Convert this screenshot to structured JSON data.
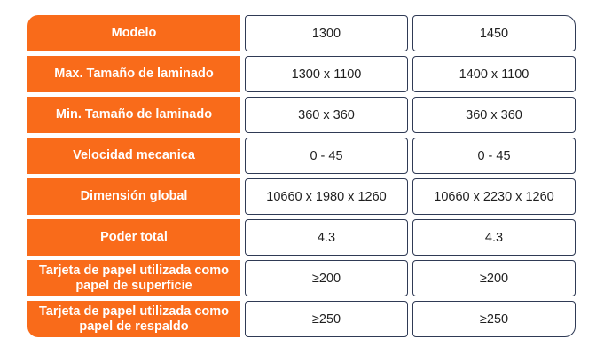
{
  "table": {
    "rows": [
      {
        "label": "Modelo",
        "values": [
          "1300",
          "1450"
        ]
      },
      {
        "label": "Max. Tamaño de laminado",
        "values": [
          "1300 x 1100",
          "1400 x 1100"
        ]
      },
      {
        "label": "Min. Tamaño de laminado",
        "values": [
          "360 x 360",
          "360 x 360"
        ]
      },
      {
        "label": "Velocidad mecanica",
        "values": [
          "0 - 45",
          "0 - 45"
        ]
      },
      {
        "label": "Dimensión global",
        "values": [
          "10660 x 1980 x 1260",
          "10660 x 2230 x 1260"
        ]
      },
      {
        "label": "Poder total",
        "values": [
          "4.3",
          "4.3"
        ]
      },
      {
        "label": "Tarjeta de papel utilizada como papel de superficie",
        "values": [
          "≥200",
          "≥200"
        ]
      },
      {
        "label": "Tarjeta de papel utilizada como papel de respaldo",
        "values": [
          "≥250",
          "≥250"
        ]
      }
    ]
  },
  "colors": {
    "label_background": "#f96b1a",
    "label_text": "#ffffff",
    "value_border": "#2f3a55"
  }
}
